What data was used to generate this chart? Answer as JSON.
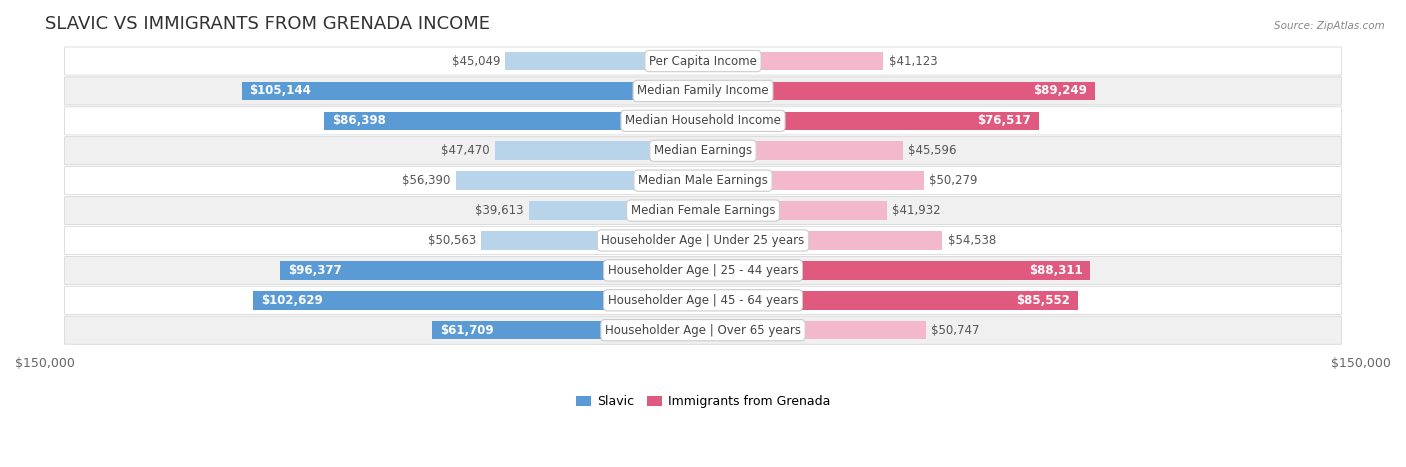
{
  "title": "SLAVIC VS IMMIGRANTS FROM GRENADA INCOME",
  "source": "Source: ZipAtlas.com",
  "categories": [
    "Per Capita Income",
    "Median Family Income",
    "Median Household Income",
    "Median Earnings",
    "Median Male Earnings",
    "Median Female Earnings",
    "Householder Age | Under 25 years",
    "Householder Age | 25 - 44 years",
    "Householder Age | 45 - 64 years",
    "Householder Age | Over 65 years"
  ],
  "slavic_values": [
    45049,
    105144,
    86398,
    47470,
    56390,
    39613,
    50563,
    96377,
    102629,
    61709
  ],
  "grenada_values": [
    41123,
    89249,
    76517,
    45596,
    50279,
    41932,
    54538,
    88311,
    85552,
    50747
  ],
  "slavic_labels": [
    "$45,049",
    "$105,144",
    "$86,398",
    "$47,470",
    "$56,390",
    "$39,613",
    "$50,563",
    "$96,377",
    "$102,629",
    "$61,709"
  ],
  "grenada_labels": [
    "$41,123",
    "$89,249",
    "$76,517",
    "$45,596",
    "$50,279",
    "$41,932",
    "$54,538",
    "$88,311",
    "$85,552",
    "$50,747"
  ],
  "slavic_color_light": "#b8d4ea",
  "slavic_color_dark": "#5b9bd5",
  "grenada_color_light": "#f4b8cc",
  "grenada_color_dark": "#e05a80",
  "slavic_threshold": 60000,
  "grenada_threshold": 60000,
  "max_value": 150000,
  "bg_color": "#ffffff",
  "row_color_even": "#ffffff",
  "row_color_odd": "#f0f0f0",
  "legend_slavic": "Slavic",
  "legend_grenada": "Immigrants from Grenada",
  "axis_label_left": "$150,000",
  "axis_label_right": "$150,000",
  "title_fontsize": 13,
  "label_fontsize": 8.5,
  "category_fontsize": 8.5
}
